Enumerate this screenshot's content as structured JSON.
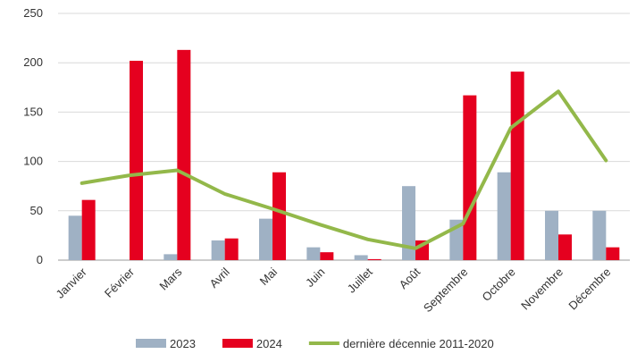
{
  "chart_data": {
    "type": "bar",
    "title": "",
    "xlabel": "",
    "ylabel": "",
    "ylim": [
      0,
      250
    ],
    "yticks": [
      0,
      50,
      100,
      150,
      200,
      250
    ],
    "grid": true,
    "legend_position": "bottom",
    "categories": [
      "Janvier",
      "Février",
      "Mars",
      "Avril",
      "Mai",
      "Juin",
      "Juillet",
      "Août",
      "Septembre",
      "Octobre",
      "Novembre",
      "Décembre"
    ],
    "series": [
      {
        "name": "2023",
        "kind": "bar",
        "color": "#9fb1c4",
        "values": [
          45,
          0,
          6,
          20,
          42,
          13,
          5,
          75,
          41,
          89,
          50,
          50
        ]
      },
      {
        "name": "2024",
        "kind": "bar",
        "color": "#e5001f",
        "values": [
          61,
          202,
          213,
          22,
          89,
          8,
          1,
          20,
          167,
          191,
          26,
          13
        ]
      },
      {
        "name": "dernière décennie 2011-2020",
        "kind": "line",
        "color": "#93b84a",
        "values": [
          78,
          86,
          91,
          67,
          52,
          36,
          21,
          12,
          37,
          134,
          171,
          101
        ]
      }
    ]
  }
}
